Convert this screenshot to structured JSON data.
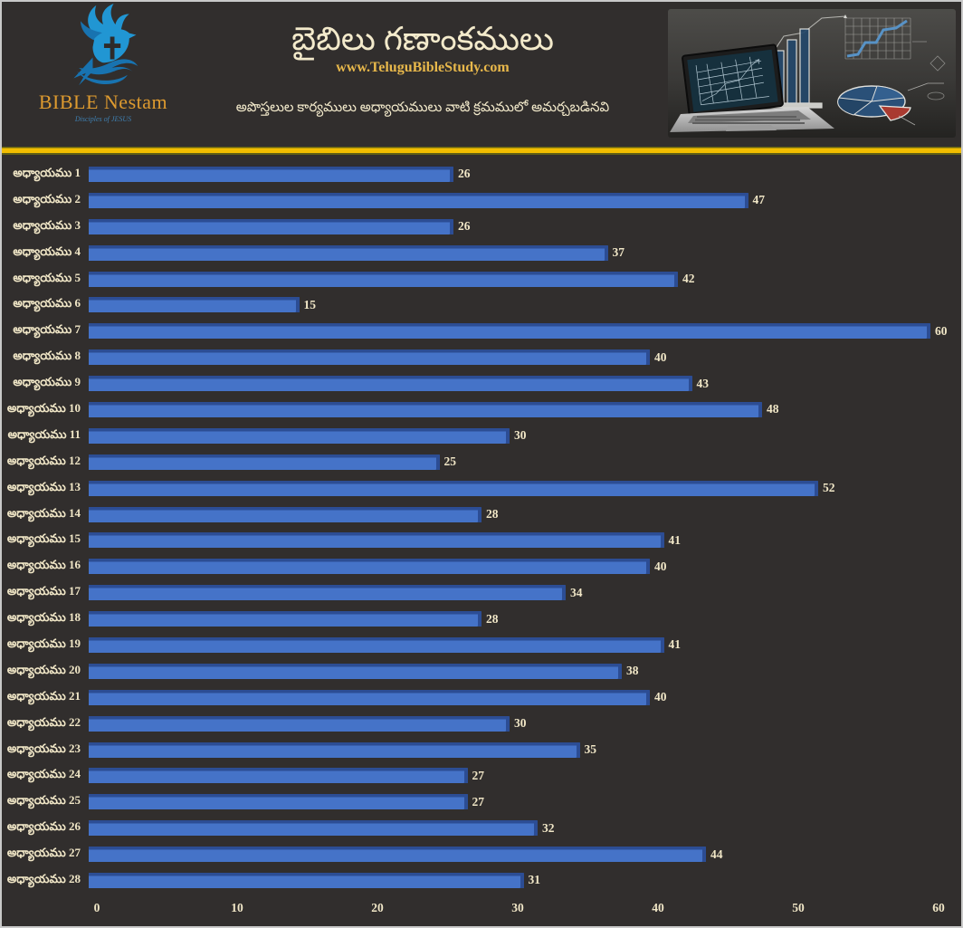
{
  "header": {
    "brand": "BIBLE Nestam",
    "brand_tagline": "Disciples of JESUS",
    "title": "బైబిలు గణాంకములు",
    "website": "www.TeluguBibleStudy.com",
    "subtitle": "అపొస్తలుల కార్యములు అధ్యాయములు వాటి క్రమములో అమర్చబడినవి"
  },
  "chart_data": {
    "type": "bar",
    "orientation": "horizontal",
    "title": "బైబిలు గణాంకములు",
    "subtitle": "అపొస్తలుల కార్యములు అధ్యాయములు వాటి క్రమములో అమర్చబడినవి",
    "categories": [
      "అధ్యాయము 1",
      "అధ్యాయము 2",
      "అధ్యాయము 3",
      "అధ్యాయము 4",
      "అధ్యాయము 5",
      "అధ్యాయము 6",
      "అధ్యాయము 7",
      "అధ్యాయము 8",
      "అధ్యాయము 9",
      "అధ్యాయము 10",
      "అధ్యాయము 11",
      "అధ్యాయము 12",
      "అధ్యాయము 13",
      "అధ్యాయము 14",
      "అధ్యాయము 15",
      "అధ్యాయము 16",
      "అధ్యాయము 17",
      "అధ్యాయము 18",
      "అధ్యాయము 19",
      "అధ్యాయము 20",
      "అధ్యాయము 21",
      "అధ్యాయము 22",
      "అధ్యాయము 23",
      "అధ్యాయము 24",
      "అధ్యాయము 25",
      "అధ్యాయము 26",
      "అధ్యాయము 27",
      "అధ్యాయము 28"
    ],
    "values": [
      26,
      47,
      26,
      37,
      42,
      15,
      60,
      40,
      43,
      48,
      30,
      25,
      52,
      28,
      41,
      40,
      34,
      28,
      41,
      38,
      40,
      30,
      35,
      27,
      27,
      32,
      44,
      31
    ],
    "x_ticks": [
      0,
      10,
      20,
      30,
      40,
      50,
      60
    ],
    "xlim": [
      0,
      60
    ],
    "grid": false,
    "legend": false,
    "data_labels": true,
    "bar_color": "#4573c8",
    "bar_edge_color": "#2c4d94",
    "text_color": "#f1e7c7",
    "background_color": "#312e2d",
    "divider_color": "#f2bd00"
  }
}
